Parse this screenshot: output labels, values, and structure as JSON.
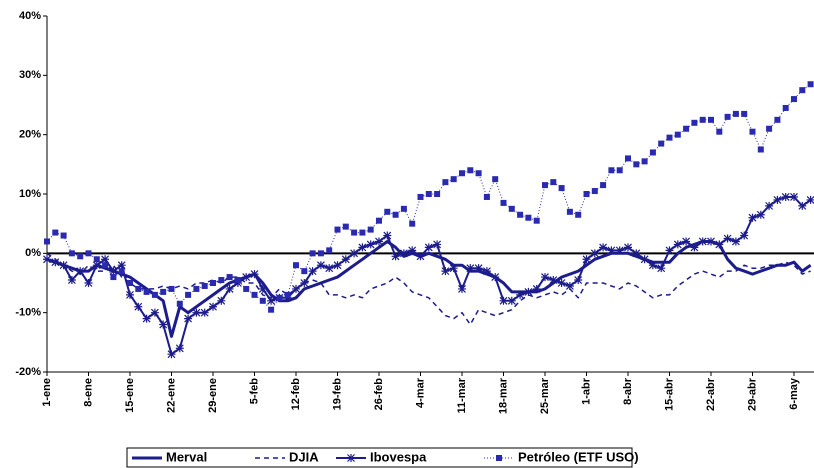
{
  "chart_data": {
    "type": "line",
    "categories": [
      "1-ene",
      null,
      null,
      null,
      null,
      "8-ene",
      null,
      null,
      null,
      null,
      "15-ene",
      null,
      null,
      null,
      null,
      "22-ene",
      null,
      null,
      null,
      null,
      "29-ene",
      null,
      null,
      null,
      null,
      "5-feb",
      null,
      null,
      null,
      null,
      "12-feb",
      null,
      null,
      null,
      null,
      "19-feb",
      null,
      null,
      null,
      null,
      "26-feb",
      null,
      null,
      null,
      null,
      "4-mar",
      null,
      null,
      null,
      null,
      "11-mar",
      null,
      null,
      null,
      null,
      "18-mar",
      null,
      null,
      null,
      null,
      "25-mar",
      null,
      null,
      null,
      null,
      "1-abr",
      null,
      null,
      null,
      null,
      "8-abr",
      null,
      null,
      null,
      null,
      "15-abr",
      null,
      null,
      null,
      null,
      "22-abr",
      null,
      null,
      null,
      null,
      "29-abr",
      null,
      null,
      null,
      null,
      "6-may",
      null,
      null
    ],
    "series": [
      {
        "name": "Merval",
        "color": "#1c1c8c",
        "line_style": "solid",
        "line_width": 3,
        "marker": "none",
        "values": [
          -1,
          -1.5,
          -2,
          -2.5,
          -3,
          -3,
          -2,
          -2.5,
          -3,
          -3.5,
          -4,
          -5,
          -6,
          -7,
          -8,
          -14,
          -9,
          -10,
          -9,
          -8,
          -7,
          -6,
          -5,
          -4.5,
          -4,
          -3.5,
          -5,
          -7,
          -8,
          -8,
          -7.5,
          -6,
          -5.5,
          -5,
          -4.5,
          -4,
          -3,
          -2,
          -1,
          0,
          1,
          2,
          1,
          -0.5,
          0,
          -0.5,
          0,
          -0.5,
          -1,
          -2,
          -2,
          -3,
          -3,
          -3.5,
          -4,
          -5,
          -6.5,
          -6.5,
          -6.5,
          -6.5,
          -6,
          -5,
          -4,
          -3.5,
          -3,
          -2,
          -1,
          -0.5,
          0,
          0,
          0,
          -0.5,
          -1,
          -1.5,
          -1.5,
          -1.5,
          0,
          1,
          1.5,
          2,
          2,
          1.5,
          -1,
          -2.5,
          -3,
          -3.5,
          -3,
          -2.5,
          -2,
          -2,
          -1.5,
          -3,
          -2
        ]
      },
      {
        "name": "DJIA",
        "color": "#1c1c8c",
        "line_style": "dashed",
        "line_width": 1.5,
        "marker": "none",
        "values": [
          0,
          -1,
          -2,
          -3,
          -3.5,
          -2,
          -3,
          -3,
          -2,
          -4,
          -5,
          -6,
          -6,
          -6,
          -5.5,
          -6,
          -5.5,
          -6,
          -5,
          -5,
          -4.5,
          -5,
          -4,
          -4,
          -5,
          -5,
          -7,
          -7.5,
          -6,
          -7,
          -6,
          -5,
          -4.5,
          -5,
          -7,
          -7,
          -7.5,
          -7,
          -7.5,
          -6,
          -5.5,
          -5,
          -4,
          -5,
          -6.5,
          -7,
          -7.5,
          -9,
          -10.5,
          -11,
          -10,
          -12,
          -9.5,
          -10,
          -10.5,
          -10,
          -9.5,
          -8,
          -7,
          -7.5,
          -7,
          -6.5,
          -7,
          -6,
          -7.5,
          -5,
          -5,
          -5,
          -5.5,
          -6,
          -5,
          -5.5,
          -6.5,
          -7.5,
          -7,
          -7,
          -5.5,
          -4.5,
          -3.5,
          -3,
          -3.5,
          -4,
          -3,
          -3,
          -2,
          -2.5,
          -2.5,
          -2,
          -2,
          -1.5,
          -2,
          -3.5,
          -3
        ]
      },
      {
        "name": "Ibovespa",
        "color": "#1c1c8c",
        "line_style": "solid",
        "line_width": 2,
        "marker": "star",
        "values": [
          -1,
          -1.5,
          -2,
          -4.5,
          -3,
          -5,
          -2,
          -1,
          -3,
          -2,
          -7,
          -9,
          -11,
          -10,
          -12,
          -17,
          -16,
          -11,
          -10,
          -10,
          -9,
          -8,
          -6,
          -5,
          -4,
          -3.5,
          -6,
          -8,
          -7.5,
          -7.5,
          -6,
          -5,
          -3,
          -2,
          -2.5,
          -2,
          -1,
          0,
          1,
          1.5,
          2,
          3,
          -0.5,
          0,
          0.5,
          -0.5,
          1,
          1.5,
          -3,
          -2.5,
          -6,
          -2.5,
          -2.5,
          -3,
          -4,
          -8,
          -8,
          -7,
          -6.5,
          -6,
          -4,
          -4.5,
          -5,
          -5.5,
          -4.5,
          -1,
          0,
          1,
          0.5,
          0.5,
          1,
          0,
          -1,
          -2,
          -2.5,
          0.5,
          1.5,
          2,
          1,
          2,
          2,
          1.5,
          2.5,
          2,
          3,
          6,
          6.5,
          8,
          9,
          9.5,
          9.5,
          8,
          9
        ]
      },
      {
        "name": "Petróleo (ETF USO)",
        "color": "#2a2ab0",
        "line_style": "dotted",
        "line_width": 1,
        "marker": "square",
        "values": [
          2,
          3.5,
          3,
          0,
          -0.5,
          0,
          -1,
          -2,
          -4,
          -3,
          -5,
          -6,
          -6.5,
          -7,
          -6.5,
          -6,
          -8.5,
          -7,
          -6,
          -5.5,
          -5,
          -4.5,
          -4,
          -4.5,
          -6,
          -7,
          -8,
          -9.5,
          -7.5,
          -7,
          -2,
          -3,
          0,
          0,
          0.5,
          4,
          4.5,
          3.5,
          3.5,
          4,
          5.5,
          7,
          6.5,
          7.5,
          5,
          9.5,
          10,
          10,
          12,
          12.5,
          13.5,
          14,
          13.5,
          9.5,
          12.5,
          8.5,
          7.5,
          6.5,
          6,
          5.5,
          11.5,
          12,
          11,
          7,
          6.5,
          10,
          10.5,
          11.5,
          14,
          14,
          16,
          15,
          15.5,
          17,
          18.5,
          19.5,
          20,
          21,
          22,
          22.5,
          22.5,
          20.5,
          23,
          23.5,
          23.5,
          20.5,
          17.5,
          21,
          22.5,
          24.5,
          26,
          27.5,
          28.5
        ]
      }
    ],
    "ylim": [
      -20,
      40
    ],
    "yticks": [
      {
        "value": -20,
        "label": "-20%"
      },
      {
        "value": -10,
        "label": "-10%"
      },
      {
        "value": 0,
        "label": "0%"
      },
      {
        "value": 10,
        "label": "10%"
      },
      {
        "value": 20,
        "label": "20%"
      },
      {
        "value": 30,
        "label": "30%"
      },
      {
        "value": 40,
        "label": "40%"
      }
    ],
    "grid": false,
    "legend": "bottom"
  }
}
